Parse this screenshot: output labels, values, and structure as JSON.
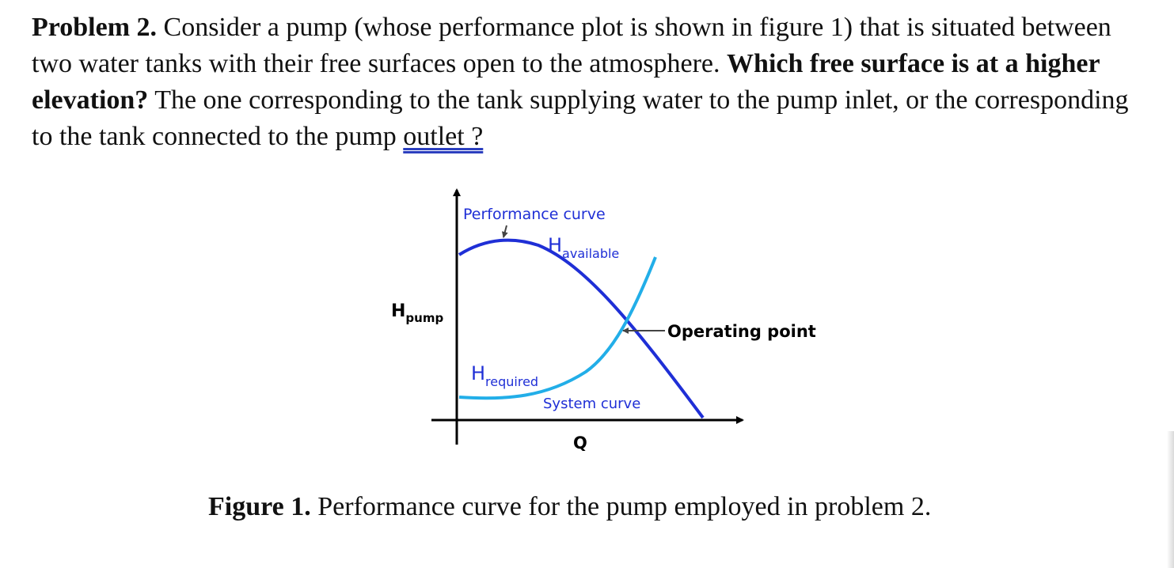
{
  "problem": {
    "label": "Problem 2.",
    "text1": " Consider a pump (whose performance plot is shown in figure 1) that is situated between two water tanks with their free surfaces open to the atmosphere. ",
    "question": "Which free surface is at a higher elevation?",
    "text2": " The one corresponding to the tank supplying water to the pump inlet, or the corresponding to the tank connected to the pump ",
    "underlined": "outlet ?"
  },
  "figure": {
    "performance_curve_label": "Performance curve",
    "h_available_main": "H",
    "h_available_sub": "available",
    "h_pump_main": "H",
    "h_pump_sub": "pump",
    "operating_point_label": "Operating point",
    "h_required_main": "H",
    "h_required_sub": "required",
    "system_curve_label": "System curve",
    "x_axis_label": "Q",
    "colors": {
      "performance_curve": "#1f2fd6",
      "system_curve": "#22aee8",
      "label_blue": "#1f2fd6",
      "axis": "#000000"
    }
  },
  "caption": {
    "label": "Figure 1.",
    "text": " Performance curve for the pump employed in problem 2."
  }
}
